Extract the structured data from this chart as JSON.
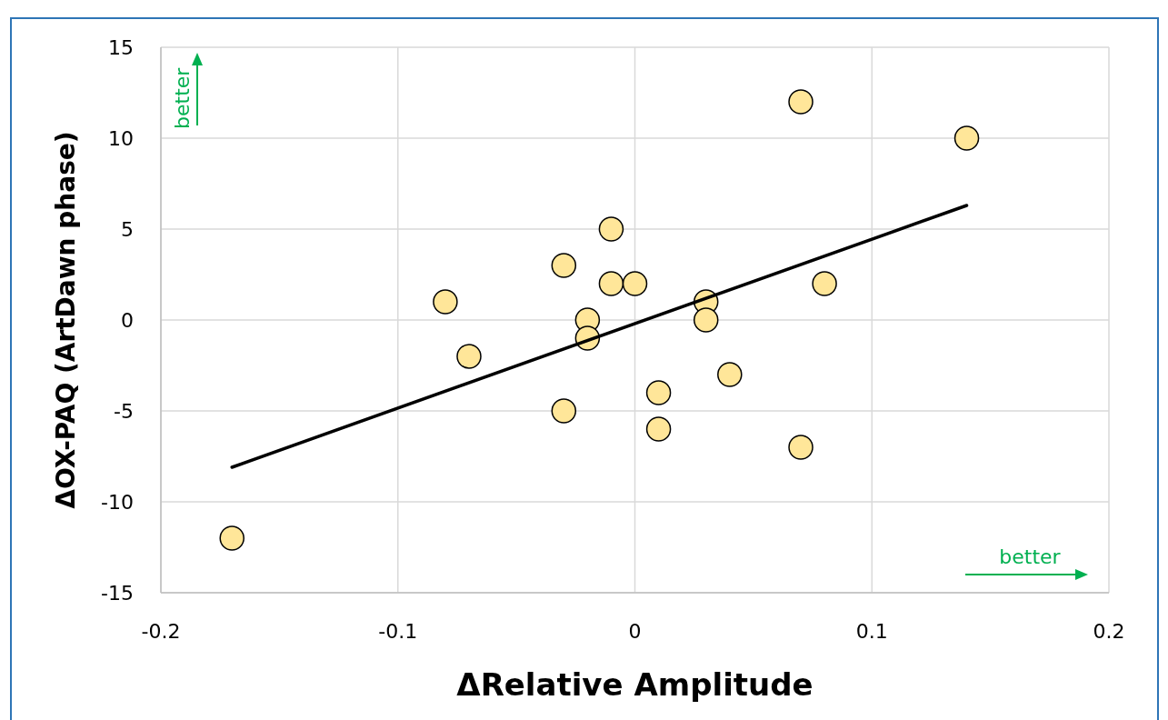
{
  "chart_data": {
    "type": "scatter",
    "xlabel": "ΔRelative Amplitude",
    "ylabel": "ΔOX-PAQ (ArtDawn phase)",
    "annotations": [
      "better",
      "better"
    ],
    "xlim": [
      -0.2,
      0.2
    ],
    "xticks": [
      -0.2,
      -0.1,
      0,
      0.1,
      0.2
    ],
    "ylim": [
      -15,
      15
    ],
    "yticks": [
      -15,
      -10,
      -5,
      0,
      5,
      10,
      15
    ],
    "grid": true,
    "series": [
      {
        "color": "#ffe699",
        "marker": "circle",
        "x": [
          -0.17,
          -0.08,
          -0.07,
          -0.03,
          -0.03,
          -0.02,
          -0.02,
          -0.01,
          -0.01,
          0,
          0.01,
          0.01,
          0.03,
          0.03,
          0.04,
          0.07,
          0.07,
          0.08,
          0.14
        ],
        "values": [
          -12,
          1,
          -2,
          3,
          -5,
          0,
          -1,
          5,
          2,
          2,
          -4,
          -6,
          1,
          0,
          -3,
          12,
          -7,
          2,
          10
        ]
      },
      {
        "type": "line",
        "color": "#000000",
        "x": [
          -0.17,
          0.14
        ],
        "values": [
          -8.1,
          6.3
        ]
      }
    ]
  }
}
